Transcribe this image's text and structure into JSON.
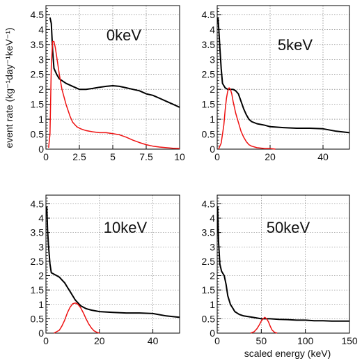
{
  "figure": {
    "ylabel": "event rate (kg⁻¹day⁻¹keV⁻¹)",
    "xlabel": "scaled energy (keV)"
  },
  "colors": {
    "black_series": "#000000",
    "red_series": "#ee1111",
    "grid": "#666666"
  },
  "chart_data": [
    {
      "type": "line",
      "title": "0keV",
      "xlim": [
        0,
        10
      ],
      "ylim": [
        0,
        4.8
      ],
      "xticks": [
        0,
        2.5,
        5,
        7.5,
        10
      ],
      "xtick_labels": [
        "0",
        "2.5",
        "5",
        "7.5",
        "10"
      ],
      "yticks": [
        0,
        0.5,
        1,
        1.5,
        2,
        2.5,
        3,
        3.5,
        4,
        4.5
      ],
      "ytick_labels": [
        "0",
        "0.5",
        "1",
        "1.5",
        "2",
        "2.5",
        "3",
        "3.5",
        "4",
        "4.5"
      ],
      "grid": true,
      "series": [
        {
          "color": "black",
          "x": [
            0.3,
            0.4,
            0.5,
            0.6,
            0.8,
            1.0,
            1.5,
            2.0,
            2.5,
            3.0,
            3.5,
            4.0,
            4.5,
            5.0,
            5.5,
            6.0,
            6.5,
            7.0,
            7.5,
            8.0,
            8.5,
            9.0,
            9.5,
            10.0
          ],
          "y": [
            4.4,
            4.2,
            3.3,
            2.7,
            2.5,
            2.35,
            2.2,
            2.1,
            2.0,
            2.0,
            2.03,
            2.07,
            2.1,
            2.12,
            2.1,
            2.05,
            2.0,
            1.95,
            1.85,
            1.8,
            1.7,
            1.6,
            1.5,
            1.4
          ]
        },
        {
          "color": "red",
          "x": [
            0.2,
            0.3,
            0.4,
            0.5,
            0.6,
            0.7,
            0.8,
            1.0,
            1.2,
            1.5,
            1.8,
            2.0,
            2.3,
            2.6,
            3.0,
            3.5,
            4.0,
            4.5,
            5.0,
            5.5,
            6.0,
            6.5,
            7.0,
            7.5,
            8.0,
            8.5,
            9.0,
            9.5,
            10.0
          ],
          "y": [
            0.05,
            0.5,
            2.8,
            3.6,
            3.6,
            3.4,
            3.1,
            2.5,
            2.0,
            1.5,
            1.1,
            0.9,
            0.75,
            0.68,
            0.62,
            0.58,
            0.55,
            0.55,
            0.52,
            0.48,
            0.4,
            0.3,
            0.22,
            0.15,
            0.1,
            0.07,
            0.05,
            0.03,
            0.02
          ]
        }
      ]
    },
    {
      "type": "line",
      "title": "5keV",
      "xlim": [
        0,
        50
      ],
      "ylim": [
        0,
        4.8
      ],
      "xticks": [
        0,
        20,
        40
      ],
      "xtick_labels": [
        "0",
        "20",
        "40"
      ],
      "yticks": [
        0,
        0.5,
        1,
        1.5,
        2,
        2.5,
        3,
        3.5,
        4,
        4.5
      ],
      "ytick_labels": [
        "0",
        "0.5",
        "1",
        "1.5",
        "2",
        "2.5",
        "3",
        "3.5",
        "4",
        "4.5"
      ],
      "grid": true,
      "series": [
        {
          "color": "black",
          "x": [
            0.3,
            0.6,
            1.0,
            1.5,
            2.0,
            3.0,
            4.0,
            5.0,
            6.0,
            7.0,
            8.0,
            9.0,
            10.0,
            11.0,
            12.0,
            13.0,
            15.0,
            18.0,
            20.0,
            25.0,
            30.0,
            35.0,
            40.0,
            45.0,
            50.0
          ],
          "y": [
            4.4,
            4.0,
            3.4,
            2.7,
            2.2,
            2.05,
            2.0,
            2.0,
            2.0,
            1.95,
            1.85,
            1.6,
            1.35,
            1.15,
            1.0,
            0.92,
            0.85,
            0.8,
            0.75,
            0.72,
            0.7,
            0.7,
            0.68,
            0.6,
            0.55
          ]
        },
        {
          "color": "red",
          "x": [
            0.5,
            1.5,
            2.5,
            3.0,
            3.5,
            4.0,
            4.5,
            5.0,
            5.5,
            6.0,
            6.5,
            7.0,
            8.0,
            9.0,
            10.0,
            11.0,
            12.0,
            13.0,
            15.0,
            18.0,
            20.0,
            22.0
          ],
          "y": [
            0.0,
            0.2,
            0.8,
            1.3,
            1.7,
            1.95,
            2.05,
            2.0,
            1.85,
            1.6,
            1.4,
            1.2,
            0.9,
            0.6,
            0.4,
            0.25,
            0.15,
            0.1,
            0.05,
            0.02,
            0.02,
            0.0
          ]
        }
      ]
    },
    {
      "type": "line",
      "title": "10keV",
      "xlim": [
        0,
        50
      ],
      "ylim": [
        0,
        4.8
      ],
      "xticks": [
        0,
        20,
        40
      ],
      "xtick_labels": [
        "0",
        "20",
        "40"
      ],
      "yticks": [
        0,
        0.5,
        1,
        1.5,
        2,
        2.5,
        3,
        3.5,
        4,
        4.5
      ],
      "ytick_labels": [
        "0",
        "0.5",
        "1",
        "1.5",
        "2",
        "2.5",
        "3",
        "3.5",
        "4",
        "4.5"
      ],
      "grid": true,
      "series": [
        {
          "color": "black",
          "x": [
            0.3,
            0.6,
            1.0,
            1.5,
            2.0,
            3.0,
            4.0,
            5.0,
            6.0,
            7.0,
            8.0,
            9.0,
            10.0,
            11.0,
            12.0,
            13.0,
            14.0,
            15.0,
            17.0,
            20.0,
            25.0,
            30.0,
            35.0,
            40.0,
            45.0,
            50.0
          ],
          "y": [
            4.4,
            3.6,
            3.0,
            2.4,
            2.1,
            2.05,
            2.0,
            1.95,
            1.85,
            1.75,
            1.6,
            1.45,
            1.3,
            1.15,
            1.05,
            0.95,
            0.9,
            0.85,
            0.8,
            0.75,
            0.72,
            0.7,
            0.7,
            0.68,
            0.6,
            0.55
          ]
        },
        {
          "color": "red",
          "x": [
            3.0,
            5.0,
            6.0,
            7.0,
            8.0,
            9.0,
            10.0,
            11.0,
            12.0,
            13.0,
            14.0,
            15.0,
            16.0,
            17.0,
            18.0,
            19.0,
            20.0
          ],
          "y": [
            0.0,
            0.1,
            0.25,
            0.45,
            0.7,
            0.9,
            1.02,
            1.05,
            1.0,
            0.88,
            0.7,
            0.5,
            0.32,
            0.18,
            0.08,
            0.03,
            0.0
          ]
        }
      ]
    },
    {
      "type": "line",
      "title": "50keV",
      "xlim": [
        0,
        150
      ],
      "ylim": [
        0,
        4.8
      ],
      "xticks": [
        0,
        50,
        100,
        150
      ],
      "xtick_labels": [
        "0",
        "50",
        "100",
        "150"
      ],
      "yticks": [
        0,
        0.5,
        1,
        1.5,
        2,
        2.5,
        3,
        3.5,
        4,
        4.5
      ],
      "ytick_labels": [
        "0",
        "0.5",
        "1",
        "1.5",
        "2",
        "2.5",
        "3",
        "3.5",
        "4",
        "4.5"
      ],
      "grid": true,
      "series": [
        {
          "color": "black",
          "x": [
            0.5,
            1.5,
            3.0,
            5.0,
            8.0,
            10.0,
            12.0,
            15.0,
            18.0,
            20.0,
            25.0,
            30.0,
            40.0,
            50.0,
            60.0,
            70.0,
            80.0,
            90.0,
            100.0,
            110.0,
            120.0,
            130.0,
            140.0,
            150.0
          ],
          "y": [
            4.4,
            3.2,
            2.4,
            2.15,
            2.0,
            1.7,
            1.3,
            1.0,
            0.85,
            0.75,
            0.65,
            0.6,
            0.55,
            0.5,
            0.5,
            0.48,
            0.47,
            0.45,
            0.45,
            0.43,
            0.43,
            0.42,
            0.42,
            0.42
          ]
        },
        {
          "color": "red",
          "x": [
            38.0,
            42.0,
            45.0,
            48.0,
            50.0,
            52.0,
            54.0,
            56.0,
            58.0,
            60.0,
            62.0,
            65.0,
            68.0
          ],
          "y": [
            0.0,
            0.05,
            0.15,
            0.3,
            0.42,
            0.5,
            0.55,
            0.5,
            0.4,
            0.25,
            0.12,
            0.03,
            0.0
          ]
        }
      ]
    }
  ]
}
